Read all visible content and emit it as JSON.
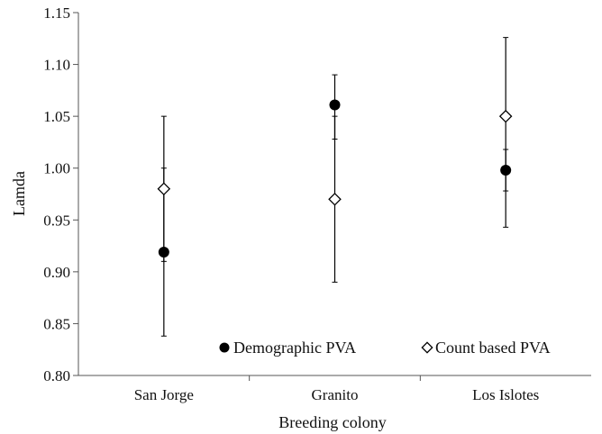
{
  "chart_data": {
    "type": "scatter",
    "title": "",
    "xlabel": "Breeding colony",
    "ylabel": "Lamda",
    "categories": [
      "San Jorge",
      "Granito",
      "Los Islotes"
    ],
    "ylim": [
      0.8,
      1.15
    ],
    "yticks": [
      "0.80",
      "0.85",
      "0.90",
      "0.95",
      "1.00",
      "1.05",
      "1.10",
      "1.15"
    ],
    "grid": false,
    "legend_position": "bottom",
    "series": [
      {
        "name": "Demographic PVA",
        "marker": "filled-circle",
        "color": "#000000",
        "values": [
          0.919,
          1.061,
          0.998
        ],
        "error_low": [
          0.838,
          1.028,
          0.978
        ],
        "error_high": [
          1.0,
          1.09,
          1.018
        ]
      },
      {
        "name": "Count based PVA",
        "marker": "open-diamond",
        "color": "#000000",
        "values": [
          0.98,
          0.97,
          1.05
        ],
        "error_low": [
          0.91,
          0.89,
          0.943
        ],
        "error_high": [
          1.05,
          1.05,
          1.126
        ]
      }
    ]
  }
}
